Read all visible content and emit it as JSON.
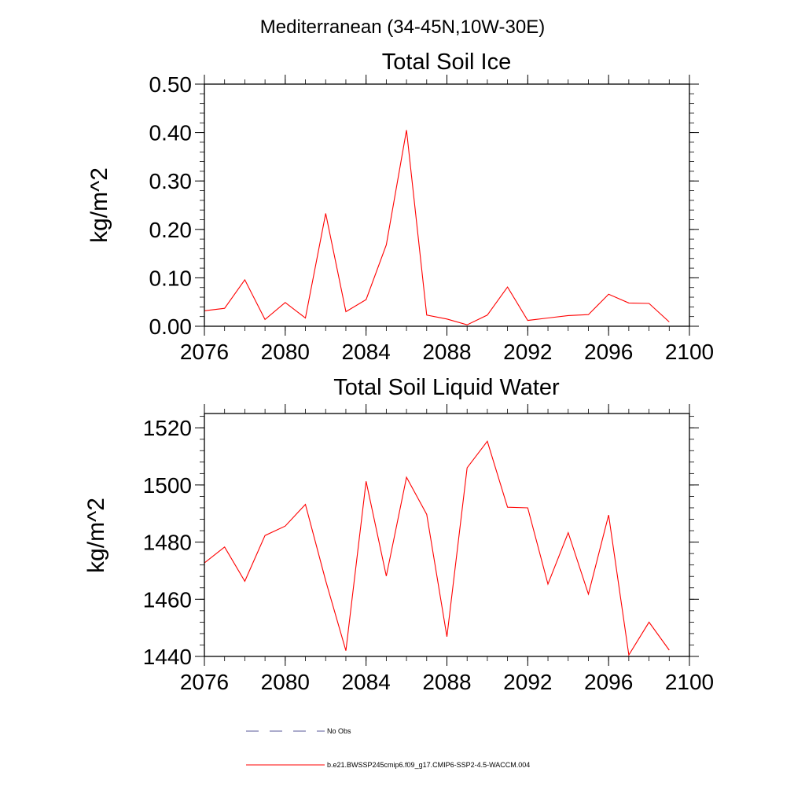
{
  "figure": {
    "main_title": "Mediterranean (34-45N,10W-30E)"
  },
  "chart_data": [
    {
      "type": "line",
      "title": "Total Soil Ice",
      "xlabel": "",
      "ylabel": "kg/m^2",
      "xlim": [
        2076,
        2100
      ],
      "ylim": [
        0,
        0.5
      ],
      "x_ticks": [
        2076,
        2080,
        2084,
        2088,
        2092,
        2096,
        2100
      ],
      "y_ticks": [
        0,
        0.1,
        0.2,
        0.3,
        0.4,
        0.5
      ],
      "y_tick_labels": [
        "0.00",
        "0.10",
        "0.20",
        "0.30",
        "0.40",
        "0.50"
      ],
      "y_minor_step": 0.02,
      "x_minor_step": 1,
      "grid": false,
      "series": [
        {
          "color": "#ff0000",
          "x": [
            2076,
            2077,
            2078,
            2079,
            2080,
            2081,
            2082,
            2083,
            2084,
            2085,
            2086,
            2087,
            2088,
            2089,
            2090,
            2091,
            2092,
            2093,
            2094,
            2095,
            2096,
            2097,
            2098,
            2099
          ],
          "values": [
            0.032,
            0.037,
            0.096,
            0.014,
            0.049,
            0.017,
            0.233,
            0.03,
            0.055,
            0.168,
            0.405,
            0.023,
            0.015,
            0.003,
            0.023,
            0.081,
            0.012,
            0.017,
            0.022,
            0.024,
            0.066,
            0.048,
            0.047,
            0.009
          ]
        }
      ]
    },
    {
      "type": "line",
      "title": "Total Soil Liquid Water",
      "xlabel": "",
      "ylabel": "kg/m^2",
      "xlim": [
        2076,
        2100
      ],
      "ylim": [
        1440,
        1525
      ],
      "x_ticks": [
        2076,
        2080,
        2084,
        2088,
        2092,
        2096,
        2100
      ],
      "y_ticks": [
        1440,
        1460,
        1480,
        1500,
        1520
      ],
      "y_tick_labels": [
        "1440",
        "1460",
        "1480",
        "1500",
        "1520"
      ],
      "y_minor_step": 4,
      "x_minor_step": 1,
      "grid": false,
      "series": [
        {
          "color": "#ff0000",
          "x": [
            2076,
            2077,
            2078,
            2079,
            2080,
            2081,
            2082,
            2083,
            2084,
            2085,
            2086,
            2087,
            2088,
            2089,
            2090,
            2091,
            2092,
            2093,
            2094,
            2095,
            2096,
            2097,
            2098,
            2099
          ],
          "values": [
            1472.7,
            1478.3,
            1466.3,
            1482.3,
            1485.6,
            1493.2,
            1466.5,
            1442.0,
            1501.3,
            1468.1,
            1502.7,
            1489.7,
            1446.9,
            1506.0,
            1515.3,
            1492.2,
            1492.0,
            1465.3,
            1483.3,
            1461.8,
            1489.5,
            1440.5,
            1452.0,
            1442.2
          ]
        }
      ]
    }
  ],
  "legend": {
    "placement": "bottom",
    "items": [
      {
        "label": "No Obs",
        "style": "dashed",
        "color": "#5a5a9a"
      },
      {
        "label": "b.e21.BWSSP245cmip6.f09_g17.CMIP6-SSP2-4.5-WACCM.004",
        "style": "solid",
        "color": "#ff0000"
      }
    ]
  }
}
